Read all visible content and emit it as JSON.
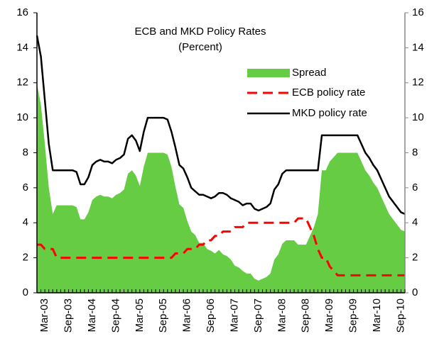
{
  "chart_data": {
    "type": "line",
    "title": "ECB and MKD Policy Rates",
    "subtitle": "(Percent)",
    "categories": [
      null,
      null,
      "Mar-03",
      null,
      null,
      null,
      null,
      null,
      "Sep-03",
      null,
      null,
      null,
      null,
      null,
      "Mar-04",
      null,
      null,
      null,
      null,
      null,
      "Sep-04",
      null,
      null,
      null,
      null,
      null,
      "Mar-05",
      null,
      null,
      null,
      null,
      null,
      "Sep-05",
      null,
      null,
      null,
      null,
      null,
      "Mar-06",
      null,
      null,
      null,
      null,
      null,
      "Sep-06",
      null,
      null,
      null,
      null,
      null,
      "Mar-07",
      null,
      null,
      null,
      null,
      null,
      "Sep-07",
      null,
      null,
      null,
      null,
      null,
      "Mar-08",
      null,
      null,
      null,
      null,
      null,
      "Sep-08",
      null,
      null,
      null,
      null,
      null,
      "Mar-09",
      null,
      null,
      null,
      null,
      null,
      "Sep-09",
      null,
      null,
      null,
      null,
      null,
      "Mar-10",
      null,
      null,
      null,
      null,
      null,
      "Sep-10",
      null
    ],
    "series": [
      {
        "name": "Spread",
        "kind": "area",
        "color": "#66cc44",
        "values": [
          11.95,
          10.75,
          8.5,
          6.0,
          4.5,
          5.0,
          5.0,
          5.0,
          5.0,
          5.0,
          4.9,
          4.2,
          4.2,
          4.6,
          5.3,
          5.5,
          5.6,
          5.5,
          5.5,
          5.4,
          5.6,
          5.7,
          5.9,
          6.8,
          7.0,
          6.7,
          6.1,
          7.2,
          8,
          8,
          8,
          8,
          8,
          7.9,
          7.2,
          6.05,
          5.05,
          4.85,
          4.1,
          3.5,
          3.3,
          2.85,
          2.85,
          2.5,
          2.4,
          2.25,
          2.45,
          2.2,
          2.1,
          1.9,
          1.55,
          1.45,
          1.25,
          1.1,
          1.1,
          0.8,
          0.7,
          0.8,
          0.9,
          1.1,
          1.9,
          2.2,
          2.8,
          3,
          3,
          3,
          2.75,
          2.75,
          2.75,
          3.25,
          3.75,
          4.5,
          7,
          7,
          7.5,
          7.75,
          8,
          8,
          8,
          8,
          8,
          8,
          7.5,
          7,
          6.7,
          6.3,
          6,
          5.5,
          5,
          4.5,
          4.2,
          3.9,
          3.6,
          3.5
        ]
      },
      {
        "name": "ECB policy rate",
        "kind": "dashed",
        "color": "#ff0000",
        "values": [
          2.75,
          2.75,
          2.5,
          2.5,
          2.5,
          2,
          2,
          2,
          2,
          2,
          2,
          2,
          2,
          2,
          2,
          2,
          2,
          2,
          2,
          2,
          2,
          2,
          2,
          2,
          2,
          2,
          2,
          2,
          2,
          2,
          2,
          2,
          2,
          2,
          2,
          2.25,
          2.25,
          2.25,
          2.5,
          2.5,
          2.5,
          2.75,
          2.75,
          3,
          3,
          3.25,
          3.25,
          3.5,
          3.5,
          3.5,
          3.75,
          3.75,
          3.75,
          4,
          4,
          4,
          4,
          4,
          4,
          4,
          4,
          4,
          4,
          4,
          4,
          4,
          4.25,
          4.25,
          4.25,
          3.75,
          3.25,
          2.5,
          2,
          2,
          1.5,
          1.25,
          1,
          1,
          1,
          1,
          1,
          1,
          1,
          1,
          1,
          1,
          1,
          1,
          1,
          1,
          1,
          1,
          1,
          1
        ]
      },
      {
        "name": "MKD policy rate",
        "kind": "solid",
        "color": "#000000",
        "values": [
          14.7,
          13.5,
          11.0,
          8.5,
          7.0,
          7.0,
          7,
          7,
          7,
          7,
          6.9,
          6.2,
          6.2,
          6.6,
          7.3,
          7.5,
          7.6,
          7.5,
          7.5,
          7.4,
          7.6,
          7.7,
          7.9,
          8.8,
          9.0,
          8.7,
          8.1,
          9.2,
          10,
          10,
          10,
          10,
          10,
          9.9,
          9.2,
          8.3,
          7.3,
          7.1,
          6.6,
          6.0,
          5.8,
          5.6,
          5.6,
          5.5,
          5.4,
          5.5,
          5.7,
          5.7,
          5.6,
          5.4,
          5.3,
          5.2,
          5.0,
          5.1,
          5.1,
          4.8,
          4.7,
          4.8,
          4.9,
          5.1,
          5.9,
          6.2,
          6.8,
          7,
          7,
          7,
          7,
          7,
          7,
          7,
          7,
          7,
          9,
          9,
          9,
          9,
          9,
          9,
          9,
          9,
          9,
          9,
          8.5,
          8.0,
          7.7,
          7.3,
          7.0,
          6.5,
          6.0,
          5.5,
          5.2,
          4.9,
          4.6,
          4.5
        ]
      }
    ],
    "ylim": [
      0,
      16
    ],
    "yticks": [
      0,
      2,
      4,
      6,
      8,
      10,
      12,
      14,
      16
    ],
    "y2lim": [
      0,
      16
    ],
    "y2ticks": [
      0,
      2,
      4,
      6,
      8,
      10,
      12,
      14,
      16
    ],
    "grid": false
  }
}
